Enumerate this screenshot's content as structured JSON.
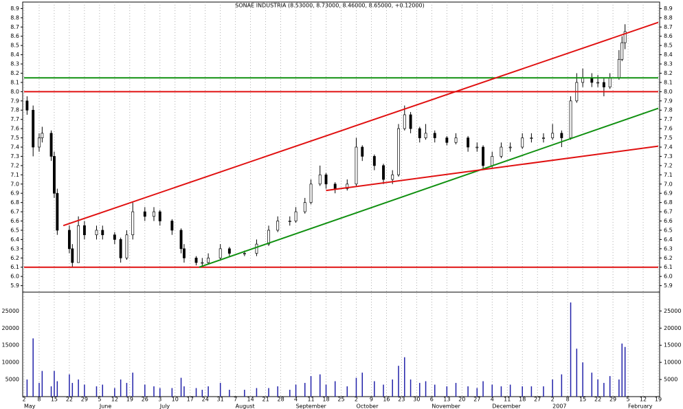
{
  "chart_data": {
    "type": "candlestick",
    "title": "SONAE INDUSTRIA (8.53000, 8.73000, 8.46000, 8.65000, +0.12000)",
    "xlim": [
      0,
      210
    ],
    "xticks": [
      {
        "value": 0,
        "label": "2"
      },
      {
        "value": 5,
        "label": "8"
      },
      {
        "value": 10,
        "label": "15"
      },
      {
        "value": 15,
        "label": "22"
      },
      {
        "value": 20,
        "label": "29"
      },
      {
        "value": 25,
        "label": "5"
      },
      {
        "value": 30,
        "label": "12"
      },
      {
        "value": 35,
        "label": "19"
      },
      {
        "value": 40,
        "label": "26"
      },
      {
        "value": 45,
        "label": "3"
      },
      {
        "value": 50,
        "label": "10"
      },
      {
        "value": 55,
        "label": "17"
      },
      {
        "value": 60,
        "label": "24"
      },
      {
        "value": 65,
        "label": "31"
      },
      {
        "value": 70,
        "label": "7"
      },
      {
        "value": 75,
        "label": "14"
      },
      {
        "value": 80,
        "label": "21"
      },
      {
        "value": 85,
        "label": "28"
      },
      {
        "value": 90,
        "label": "4"
      },
      {
        "value": 95,
        "label": "11"
      },
      {
        "value": 100,
        "label": "18"
      },
      {
        "value": 105,
        "label": "25"
      },
      {
        "value": 110,
        "label": "2"
      },
      {
        "value": 115,
        "label": "9"
      },
      {
        "value": 120,
        "label": "16"
      },
      {
        "value": 125,
        "label": "23"
      },
      {
        "value": 130,
        "label": "30"
      },
      {
        "value": 135,
        "label": "6"
      },
      {
        "value": 140,
        "label": "13"
      },
      {
        "value": 145,
        "label": "20"
      },
      {
        "value": 150,
        "label": "27"
      },
      {
        "value": 155,
        "label": "4"
      },
      {
        "value": 160,
        "label": "11"
      },
      {
        "value": 165,
        "label": "18"
      },
      {
        "value": 170,
        "label": "27"
      },
      {
        "value": 175,
        "label": "2"
      },
      {
        "value": 180,
        "label": "8"
      },
      {
        "value": 185,
        "label": "15"
      },
      {
        "value": 190,
        "label": "22"
      },
      {
        "value": 195,
        "label": "29"
      },
      {
        "value": 200,
        "label": "5"
      },
      {
        "value": 205,
        "label": "12"
      },
      {
        "value": 210,
        "label": "19"
      }
    ],
    "months": [
      {
        "value": 0,
        "label": "May"
      },
      {
        "value": 25,
        "label": "June"
      },
      {
        "value": 45,
        "label": "July"
      },
      {
        "value": 70,
        "label": "August"
      },
      {
        "value": 90,
        "label": "September"
      },
      {
        "value": 110,
        "label": "October"
      },
      {
        "value": 135,
        "label": "November"
      },
      {
        "value": 155,
        "label": "December"
      },
      {
        "value": 175,
        "label": "2007"
      },
      {
        "value": 200,
        "label": "February"
      }
    ],
    "ylim": [
      5.83,
      8.97
    ],
    "yticks": [
      5.9,
      {
        "value": 6,
        "label": "6.0"
      },
      6.1,
      6.2,
      6.3,
      6.4,
      6.5,
      6.6,
      6.7,
      6.8,
      6.9,
      {
        "value": 7,
        "label": "7.0"
      },
      7.1,
      7.2,
      7.3,
      7.4,
      7.5,
      7.6,
      7.7,
      7.8,
      7.9,
      {
        "value": 8,
        "label": "8.0"
      },
      8.1,
      8.2,
      8.3,
      8.4,
      8.5,
      8.6,
      8.7,
      8.8,
      8.9
    ],
    "candles": [
      [
        1,
        7.9,
        7.95,
        7.75,
        7.8
      ],
      [
        3,
        7.8,
        7.85,
        7.3,
        7.4
      ],
      [
        5,
        7.4,
        7.55,
        7.35,
        7.5
      ],
      [
        6,
        7.5,
        7.62,
        7.45,
        7.55
      ],
      [
        9,
        7.55,
        7.58,
        7.25,
        7.3
      ],
      [
        10,
        7.3,
        7.35,
        6.85,
        6.9
      ],
      [
        11,
        6.9,
        6.95,
        6.45,
        6.5
      ],
      [
        15,
        6.5,
        6.55,
        6.25,
        6.3
      ],
      [
        16,
        6.3,
        6.35,
        6.1,
        6.15
      ],
      [
        18,
        6.15,
        6.65,
        6.15,
        6.55
      ],
      [
        20,
        6.55,
        6.6,
        6.4,
        6.45
      ],
      [
        24,
        6.45,
        6.55,
        6.4,
        6.5
      ],
      [
        26,
        6.5,
        6.55,
        6.4,
        6.45
      ],
      [
        30,
        6.45,
        6.48,
        6.35,
        6.4
      ],
      [
        32,
        6.4,
        6.42,
        6.15,
        6.2
      ],
      [
        34,
        6.2,
        6.5,
        6.18,
        6.45
      ],
      [
        36,
        6.45,
        6.8,
        6.4,
        6.7
      ],
      [
        40,
        6.7,
        6.75,
        6.6,
        6.65
      ],
      [
        43,
        6.65,
        6.75,
        6.6,
        6.7
      ],
      [
        45,
        6.7,
        6.72,
        6.55,
        6.6
      ],
      [
        49,
        6.6,
        6.62,
        6.45,
        6.5
      ],
      [
        52,
        6.5,
        6.52,
        6.25,
        6.3
      ],
      [
        53,
        6.3,
        6.35,
        6.15,
        6.2
      ],
      [
        57,
        6.2,
        6.22,
        6.12,
        6.15
      ],
      [
        59,
        6.15,
        6.2,
        6.1,
        6.15
      ],
      [
        61,
        6.15,
        6.25,
        6.13,
        6.2
      ],
      [
        65,
        6.2,
        6.35,
        6.18,
        6.3
      ],
      [
        68,
        6.3,
        6.32,
        6.22,
        6.25
      ],
      [
        73,
        6.25,
        6.28,
        6.22,
        6.25
      ],
      [
        77,
        6.25,
        6.4,
        6.22,
        6.35
      ],
      [
        81,
        6.35,
        6.55,
        6.33,
        6.5
      ],
      [
        84,
        6.5,
        6.65,
        6.48,
        6.6
      ],
      [
        88,
        6.6,
        6.65,
        6.55,
        6.6
      ],
      [
        90,
        6.6,
        6.75,
        6.58,
        6.7
      ],
      [
        93,
        6.7,
        6.85,
        6.68,
        6.8
      ],
      [
        95,
        6.8,
        7.05,
        6.78,
        7.0
      ],
      [
        98,
        7.0,
        7.2,
        6.98,
        7.1
      ],
      [
        100,
        7.1,
        7.12,
        6.95,
        7.0
      ],
      [
        103,
        7.0,
        7.02,
        6.9,
        6.95
      ],
      [
        107,
        6.95,
        7.05,
        6.93,
        7.0
      ],
      [
        110,
        7.0,
        7.5,
        6.98,
        7.4
      ],
      [
        112,
        7.4,
        7.42,
        7.25,
        7.3
      ],
      [
        116,
        7.3,
        7.32,
        7.15,
        7.2
      ],
      [
        119,
        7.2,
        7.22,
        7.0,
        7.05
      ],
      [
        122,
        7.05,
        7.15,
        7.0,
        7.1
      ],
      [
        124,
        7.1,
        7.65,
        7.08,
        7.6
      ],
      [
        126,
        7.6,
        7.85,
        7.58,
        7.75
      ],
      [
        128,
        7.75,
        7.78,
        7.55,
        7.6
      ],
      [
        131,
        7.6,
        7.62,
        7.45,
        7.5
      ],
      [
        133,
        7.5,
        7.65,
        7.48,
        7.55
      ],
      [
        136,
        7.55,
        7.58,
        7.45,
        7.5
      ],
      [
        140,
        7.5,
        7.52,
        7.42,
        7.45
      ],
      [
        143,
        7.45,
        7.55,
        7.43,
        7.5
      ],
      [
        147,
        7.5,
        7.52,
        7.35,
        7.4
      ],
      [
        150,
        7.4,
        7.45,
        7.35,
        7.4
      ],
      [
        152,
        7.4,
        7.42,
        7.15,
        7.2
      ],
      [
        155,
        7.2,
        7.35,
        7.18,
        7.3
      ],
      [
        158,
        7.3,
        7.45,
        7.28,
        7.4
      ],
      [
        161,
        7.4,
        7.45,
        7.35,
        7.4
      ],
      [
        165,
        7.4,
        7.55,
        7.38,
        7.5
      ],
      [
        168,
        7.5,
        7.55,
        7.45,
        7.5
      ],
      [
        172,
        7.5,
        7.55,
        7.45,
        7.5
      ],
      [
        175,
        7.5,
        7.65,
        7.48,
        7.55
      ],
      [
        178,
        7.55,
        7.58,
        7.4,
        7.5
      ],
      [
        181,
        7.5,
        7.95,
        7.48,
        7.9
      ],
      [
        183,
        7.9,
        8.2,
        7.88,
        8.1
      ],
      [
        185,
        8.1,
        8.25,
        8.05,
        8.15
      ],
      [
        188,
        8.15,
        8.2,
        8.05,
        8.1
      ],
      [
        190,
        8.1,
        8.18,
        8.05,
        8.1
      ],
      [
        192,
        8.1,
        8.15,
        7.95,
        8.05
      ],
      [
        194,
        8.05,
        8.2,
        8.03,
        8.15
      ],
      [
        197,
        8.15,
        8.45,
        8.13,
        8.35
      ],
      [
        198,
        8.35,
        8.6,
        8.33,
        8.53
      ],
      [
        199,
        8.53,
        8.73,
        8.46,
        8.65
      ]
    ],
    "volume": [
      5000,
      17000,
      4000,
      7500,
      3000,
      7500,
      4500,
      6500,
      4000,
      5000,
      3500,
      3000,
      3500,
      2500,
      5000,
      4000,
      7000,
      3500,
      3000,
      2500,
      2500,
      5500,
      3000,
      2500,
      2000,
      3000,
      4000,
      2000,
      2000,
      2500,
      2500,
      3000,
      2000,
      3500,
      4000,
      6000,
      6500,
      3500,
      4500,
      3000,
      5500,
      7000,
      4500,
      3500,
      5000,
      9000,
      11500,
      5000,
      4000,
      4500,
      3500,
      3000,
      4000,
      3000,
      2500,
      4500,
      3500,
      3000,
      3500,
      3000,
      3000,
      3000,
      5000,
      6500,
      27500,
      14000,
      10000,
      7000,
      5000,
      4000,
      6000,
      5000,
      15500,
      14500
    ],
    "volume_color": "#1f1fa8",
    "vlim": [
      0,
      30500
    ],
    "vticks": [
      5000,
      10000,
      15000,
      20000,
      25000
    ],
    "trendlines": [
      {
        "color": "#e01010",
        "points": [
          [
            0,
            6.1
          ],
          [
            210,
            6.1
          ]
        ]
      },
      {
        "color": "#e01010",
        "points": [
          [
            0,
            8.0
          ],
          [
            210,
            8.0
          ]
        ]
      },
      {
        "color": "#109010",
        "points": [
          [
            0,
            8.15
          ],
          [
            210,
            8.15
          ]
        ]
      },
      {
        "color": "#e01010",
        "points": [
          [
            13,
            6.55
          ],
          [
            210,
            8.75
          ]
        ]
      },
      {
        "color": "#109010",
        "points": [
          [
            58,
            6.1
          ],
          [
            210,
            7.82
          ]
        ]
      },
      {
        "color": "#e01010",
        "points": [
          [
            100,
            6.93
          ],
          [
            210,
            7.41
          ]
        ]
      }
    ],
    "grid": true
  }
}
